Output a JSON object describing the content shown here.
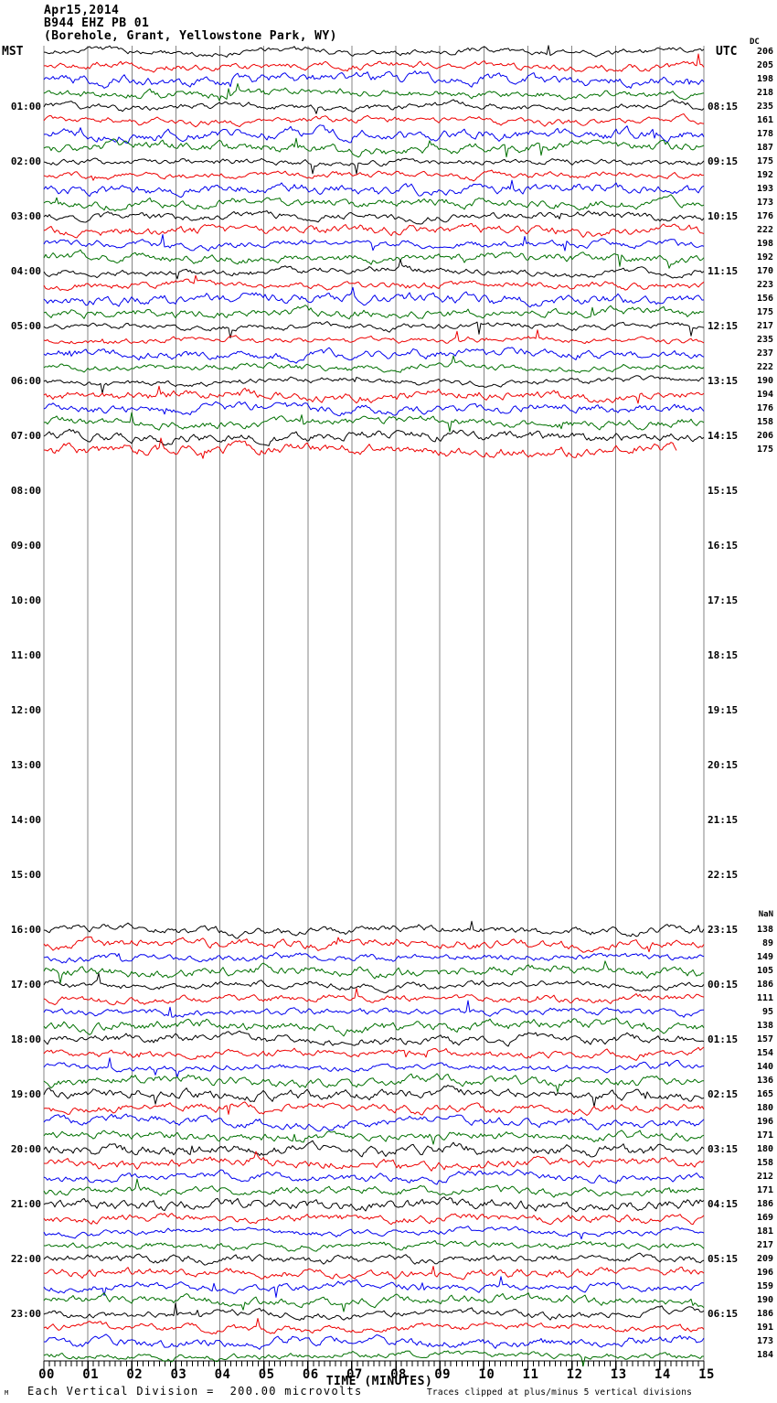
{
  "header": {
    "date": "Apr15,2014",
    "station": "B944 EHZ PB 01",
    "location": "(Borehole, Grant, Yellowstone Park, WY)"
  },
  "axes": {
    "left_zone_label": "MST",
    "right_zone_label": "UTC",
    "right_column_header_top": "DC",
    "right_column_header_bottom": "NaN"
  },
  "footer": {
    "prefix": "M",
    "left_text": "Each Vertical Division =  200.00 microvolts",
    "x_title": "TIME (MINUTES)",
    "right_text": "Traces clipped at plus/minus 5 vertical divisions"
  },
  "chart_data": {
    "type": "line",
    "subtype": "helicorder-seismogram",
    "title": "B944 EHZ PB 01",
    "subtitle": "(Borehole, Grant, Yellowstone Park, WY)",
    "date": "Apr15,2014",
    "xlabel": "TIME (MINUTES)",
    "x_range_minutes": [
      0,
      15
    ],
    "x_tick_labels": [
      "00",
      "01",
      "02",
      "03",
      "04",
      "05",
      "06",
      "07",
      "08",
      "09",
      "10",
      "11",
      "12",
      "13",
      "14",
      "15"
    ],
    "minutes_per_row": 15,
    "minor_ticks_per_minute": 8,
    "vertical_division_microvolts": 200.0,
    "clip_divisions": 5,
    "left_time_zone": "MST",
    "right_time_zone": "UTC",
    "mst_hour_labels": [
      "01:00",
      "02:00",
      "03:00",
      "04:00",
      "05:00",
      "06:00",
      "07:00",
      "08:00",
      "09:00",
      "10:00",
      "11:00",
      "12:00",
      "13:00",
      "14:00",
      "15:00",
      "16:00",
      "17:00",
      "18:00",
      "19:00",
      "20:00",
      "21:00",
      "22:00",
      "23:00"
    ],
    "utc_quarter_labels": [
      "08:15",
      "09:15",
      "10:15",
      "11:15",
      "12:15",
      "13:15",
      "14:15",
      "15:15",
      "16:15",
      "17:15",
      "18:15",
      "19:15",
      "20:15",
      "21:15",
      "22:15",
      "23:15",
      "00:15",
      "01:15",
      "02:15",
      "03:15",
      "04:15",
      "05:15",
      "06:15"
    ],
    "sections": [
      {
        "name": "early-traces",
        "first_row_mst": "00:00",
        "rows": 30,
        "last_row_end_minute": 14.4,
        "row_end_values": [
          206,
          205,
          198,
          218,
          235,
          161,
          178,
          187,
          175,
          192,
          193,
          173,
          176,
          222,
          198,
          192,
          170,
          223,
          156,
          175,
          217,
          235,
          237,
          222,
          190,
          194,
          176,
          158,
          206,
          175
        ]
      },
      {
        "name": "data-gap",
        "mst_span": "07:30 - 16:00",
        "rows": 0,
        "row_end_values": []
      },
      {
        "name": "late-traces",
        "first_row_mst": "16:00",
        "rows": 32,
        "last_row_end_minute": 15,
        "row_end_values": [
          138,
          89,
          149,
          105,
          186,
          111,
          95,
          138,
          157,
          154,
          140,
          136,
          165,
          180,
          196,
          171,
          180,
          158,
          212,
          171,
          186,
          169,
          181,
          217,
          209,
          196,
          159,
          190,
          186,
          191,
          173,
          184
        ]
      }
    ],
    "trace_color_cycle": [
      "#000000",
      "#ee0000",
      "#0000ee",
      "#007000"
    ],
    "grid_color": "#858585",
    "axis_color": "#000000",
    "legend": "none",
    "grid": "vertical-minute-lines"
  }
}
